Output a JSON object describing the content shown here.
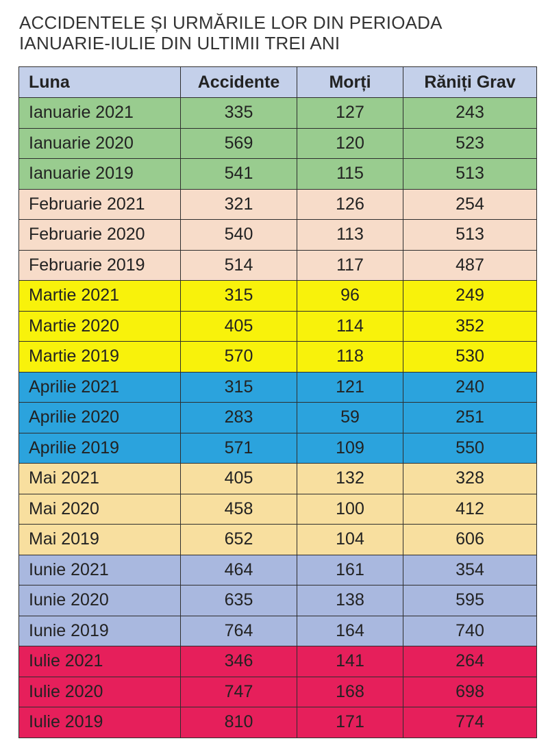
{
  "title_lines": [
    "ACCIDENTELE ȘI URMĂRILE LOR DIN PERIOADA",
    "IANUARIE-IULIE DIN ULTIMII TREI ANI"
  ],
  "colors": {
    "header": "#c4d0ea",
    "ianuarie": "#99cc8f",
    "februarie": "#f7dcc9",
    "martie": "#f8f20b",
    "aprilie": "#2ba3dd",
    "mai": "#f8df9f",
    "iunie": "#a9b8df",
    "iulie": "#e61f5b"
  },
  "chart_data": {
    "type": "table",
    "title": "ACCIDENTELE ȘI URMĂRILE LOR DIN PERIOADA IANUARIE-IULIE DIN ULTIMII TREI ANI",
    "columns": [
      "Luna",
      "Accidente",
      "Morți",
      "Răniți Grav"
    ],
    "rows": [
      {
        "group": "ian",
        "cells": [
          "Ianuarie 2021",
          "335",
          "127",
          "243"
        ]
      },
      {
        "group": "ian",
        "cells": [
          "Ianuarie 2020",
          "569",
          "120",
          "523"
        ]
      },
      {
        "group": "ian",
        "cells": [
          "Ianuarie 2019",
          "541",
          "115",
          "513"
        ]
      },
      {
        "group": "feb",
        "cells": [
          "Februarie 2021",
          "321",
          "126",
          "254"
        ]
      },
      {
        "group": "feb",
        "cells": [
          "Februarie 2020",
          "540",
          "113",
          "513"
        ]
      },
      {
        "group": "feb",
        "cells": [
          "Februarie 2019",
          "514",
          "117",
          "487"
        ]
      },
      {
        "group": "mar",
        "cells": [
          "Martie 2021",
          "315",
          "96",
          "249"
        ]
      },
      {
        "group": "mar",
        "cells": [
          "Martie 2020",
          "405",
          "114",
          "352"
        ]
      },
      {
        "group": "mar",
        "cells": [
          "Martie 2019",
          "570",
          "118",
          "530"
        ]
      },
      {
        "group": "apr",
        "cells": [
          "Aprilie 2021",
          "315",
          "121",
          "240"
        ]
      },
      {
        "group": "apr",
        "cells": [
          "Aprilie 2020",
          "283",
          "59",
          "251"
        ]
      },
      {
        "group": "apr",
        "cells": [
          "Aprilie 2019",
          "571",
          "109",
          "550"
        ]
      },
      {
        "group": "mai",
        "cells": [
          "Mai 2021",
          "405",
          "132",
          "328"
        ]
      },
      {
        "group": "mai",
        "cells": [
          "Mai 2020",
          "458",
          "100",
          "412"
        ]
      },
      {
        "group": "mai",
        "cells": [
          "Mai 2019",
          "652",
          "104",
          "606"
        ]
      },
      {
        "group": "iun",
        "cells": [
          "Iunie 2021",
          "464",
          "161",
          "354"
        ]
      },
      {
        "group": "iun",
        "cells": [
          "Iunie 2020",
          "635",
          "138",
          "595"
        ]
      },
      {
        "group": "iun",
        "cells": [
          "Iunie 2019",
          "764",
          "164",
          "740"
        ]
      },
      {
        "group": "iul",
        "cells": [
          "Iulie 2021",
          "346",
          "141",
          "264"
        ]
      },
      {
        "group": "iul",
        "cells": [
          "Iulie 2020",
          "747",
          "168",
          "698"
        ]
      },
      {
        "group": "iul",
        "cells": [
          "Iulie 2019",
          "810",
          "171",
          "774"
        ]
      }
    ]
  }
}
